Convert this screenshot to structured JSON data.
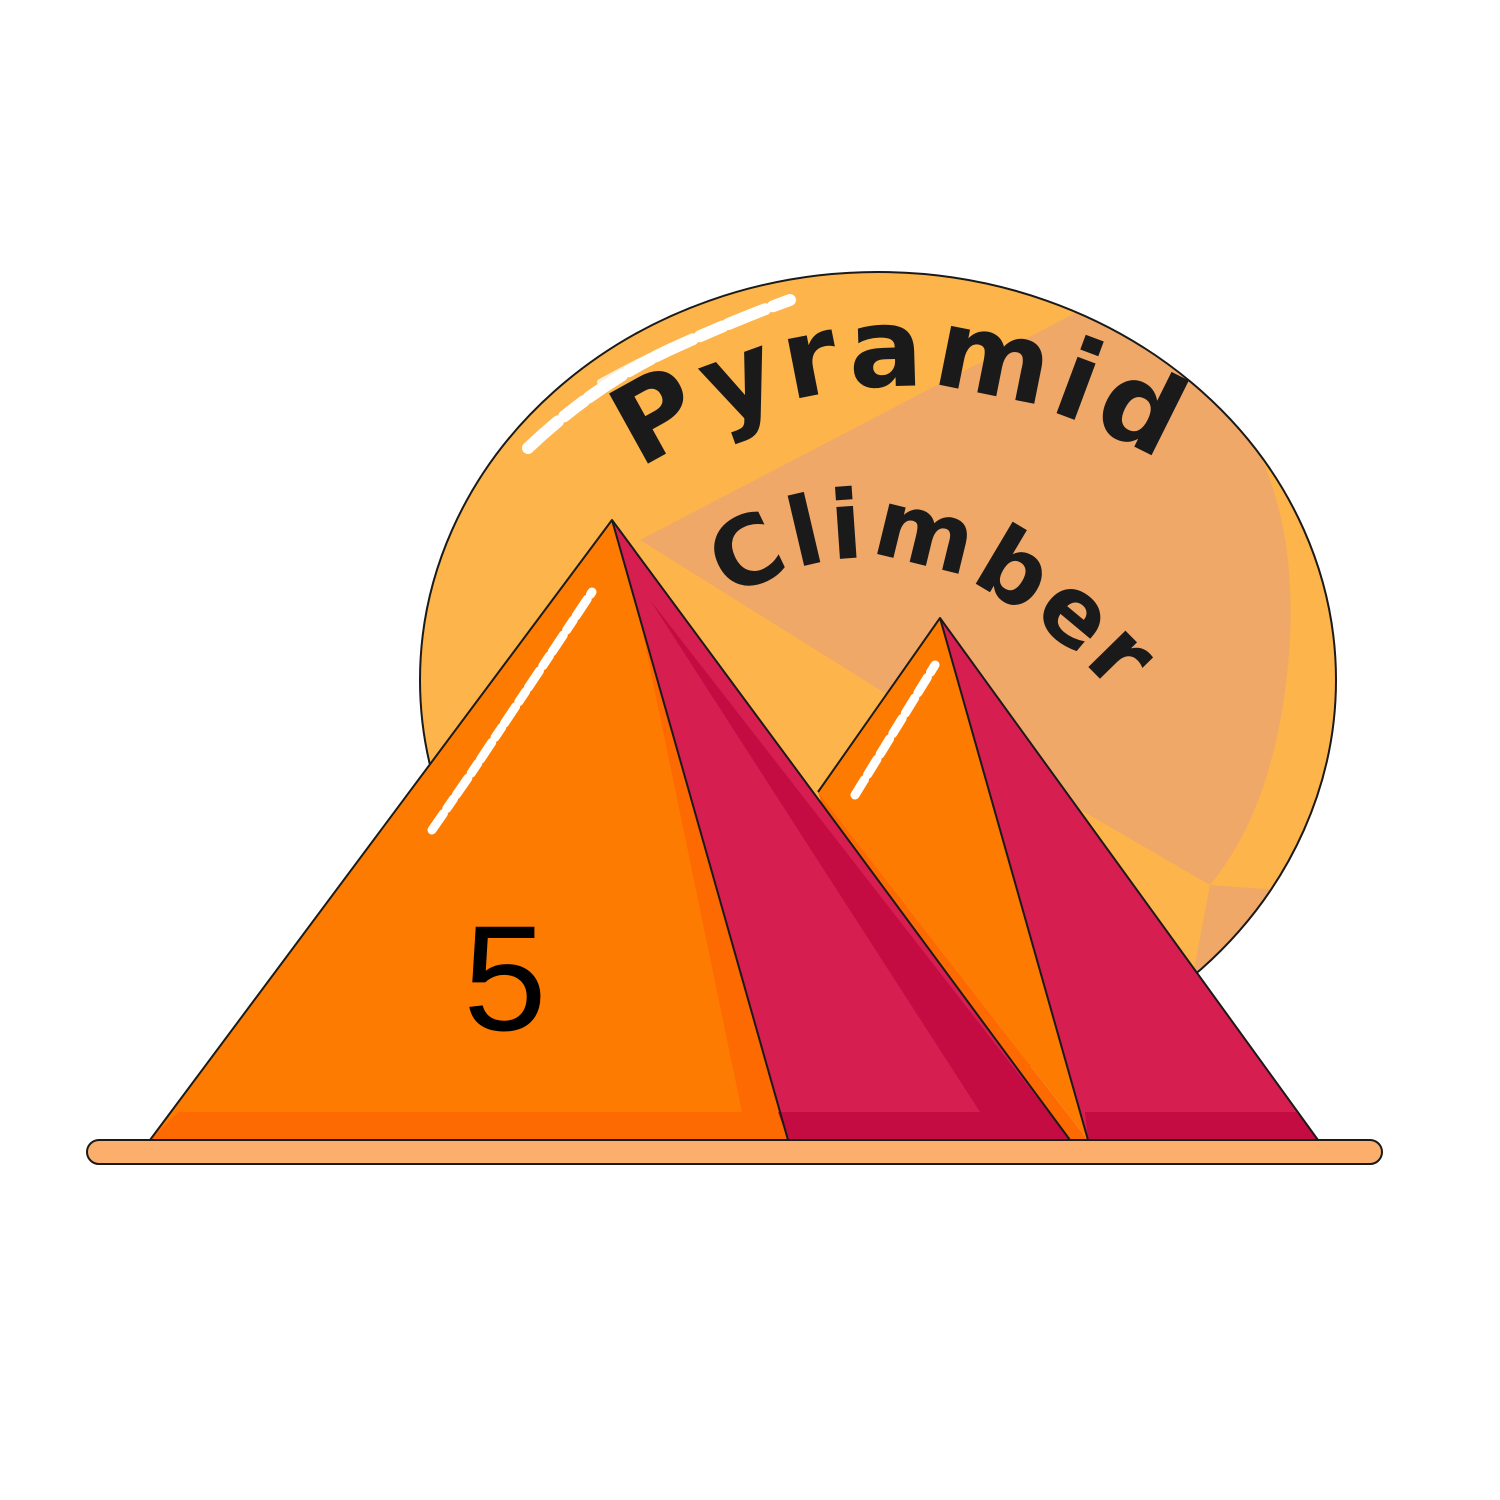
{
  "logo": {
    "title_line1": "Pyramid",
    "title_line2": "Climber",
    "number": "5"
  },
  "colors": {
    "sun_light": "#fdb44b",
    "sun_shade": "#f0a868",
    "pyramid_orange": "#fe7b02",
    "pyramid_orange_dark": "#fd6a01",
    "pyramid_red": "#d61e50",
    "pyramid_red_dark": "#c40c42",
    "ground": "#fcae6c",
    "outline": "#1a1a1a"
  }
}
